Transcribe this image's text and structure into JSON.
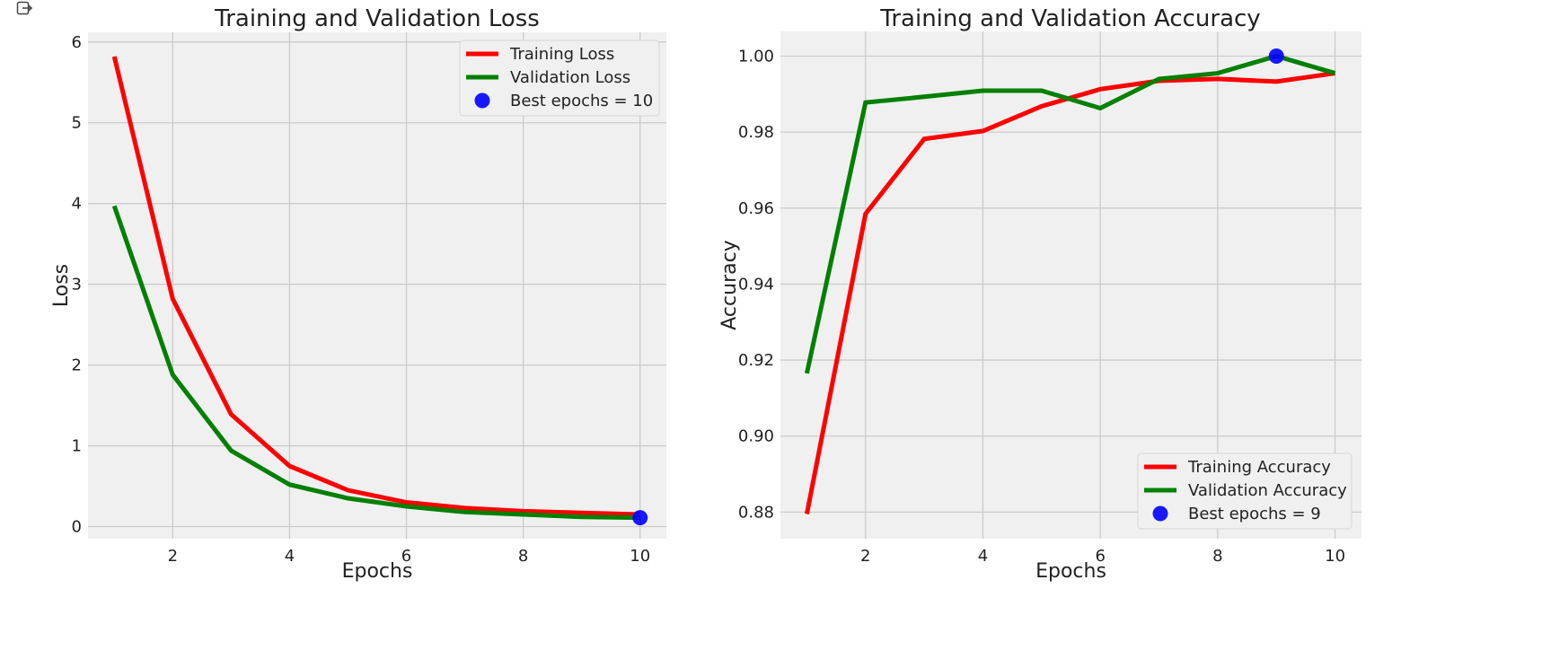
{
  "toolbar": {
    "icon": "output-expand-icon"
  },
  "colors": {
    "training": "#ff0000",
    "validation": "#008000",
    "best": "#0000ff",
    "plot_bg": "#f0f0f0",
    "grid": "#cbcbcb",
    "text": "#222222"
  },
  "chart_data": [
    {
      "type": "line",
      "title": "Training and Validation Loss",
      "xlabel": "Epochs",
      "ylabel": "Loss",
      "x": [
        1,
        2,
        3,
        4,
        5,
        6,
        7,
        8,
        9,
        10
      ],
      "xlim": [
        0.55,
        10.45
      ],
      "ylim": [
        -0.15,
        6.12
      ],
      "xticks": [
        2,
        4,
        6,
        8,
        10
      ],
      "yticks": [
        0,
        1,
        2,
        3,
        4,
        5,
        6
      ],
      "grid": true,
      "legend_position": "top-right",
      "series": [
        {
          "name": "Training Loss",
          "color": "#ff0000",
          "values": [
            5.82,
            2.82,
            1.39,
            0.75,
            0.45,
            0.3,
            0.23,
            0.19,
            0.17,
            0.15
          ]
        },
        {
          "name": "Validation Loss",
          "color": "#008000",
          "values": [
            3.97,
            1.88,
            0.94,
            0.52,
            0.35,
            0.25,
            0.18,
            0.15,
            0.12,
            0.11
          ]
        }
      ],
      "best": {
        "label": "Best epochs = 10",
        "x": 10,
        "y": 0.11
      }
    },
    {
      "type": "line",
      "title": "Training and Validation Accuracy",
      "xlabel": "Epochs",
      "ylabel": "Accuracy",
      "x": [
        1,
        2,
        3,
        4,
        5,
        6,
        7,
        8,
        9,
        10
      ],
      "xlim": [
        0.55,
        10.45
      ],
      "ylim": [
        0.873,
        1.0065
      ],
      "xticks": [
        2,
        4,
        6,
        8,
        10
      ],
      "yticks": [
        0.88,
        0.9,
        0.92,
        0.94,
        0.96,
        0.98,
        1.0
      ],
      "ytick_labels": [
        "0.88",
        "0.90",
        "0.92",
        "0.94",
        "0.96",
        "0.98",
        "1.00"
      ],
      "grid": true,
      "legend_position": "bottom-right",
      "series": [
        {
          "name": "Training Accuracy",
          "color": "#ff0000",
          "values": [
            0.8795,
            0.9585,
            0.9782,
            0.9803,
            0.9868,
            0.9913,
            0.9935,
            0.994,
            0.9933,
            0.9955
          ]
        },
        {
          "name": "Validation Accuracy",
          "color": "#008000",
          "values": [
            0.9165,
            0.9878,
            0.9893,
            0.9909,
            0.9909,
            0.9863,
            0.994,
            0.9955,
            1.0,
            0.9955
          ]
        }
      ],
      "best": {
        "label": "Best epochs = 9",
        "x": 9,
        "y": 1.0
      }
    }
  ]
}
